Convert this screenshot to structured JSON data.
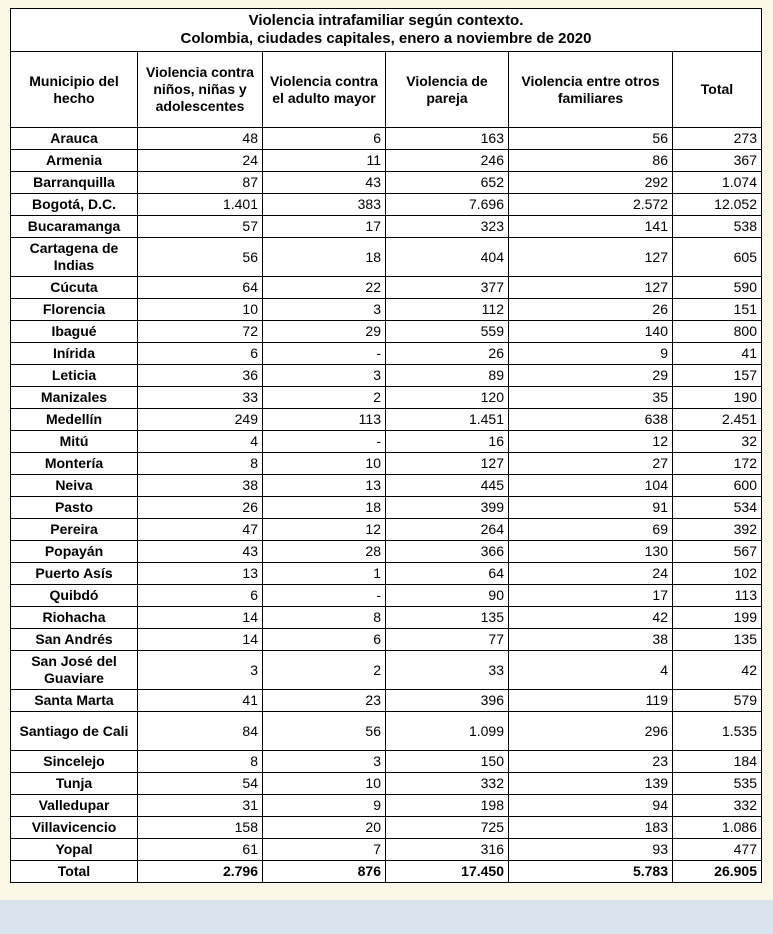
{
  "table": {
    "title": [
      "Violencia intrafamiliar según contexto.",
      "Colombia, ciudades capitales, enero a noviembre de 2020"
    ],
    "header": [
      "Municipio del hecho",
      "Violencia contra niños, niñas y adolescentes",
      "Violencia contra el adulto mayor",
      "Violencia de pareja",
      "Violencia entre otros familiares",
      "Total"
    ],
    "rows": [
      [
        "Arauca",
        "48",
        "6",
        "163",
        "56",
        "273"
      ],
      [
        "Armenia",
        "24",
        "11",
        "246",
        "86",
        "367"
      ],
      [
        "Barranquilla",
        "87",
        "43",
        "652",
        "292",
        "1.074"
      ],
      [
        "Bogotá, D.C.",
        "1.401",
        "383",
        "7.696",
        "2.572",
        "12.052"
      ],
      [
        "Bucaramanga",
        "57",
        "17",
        "323",
        "141",
        "538"
      ],
      [
        "Cartagena de Indias",
        "56",
        "18",
        "404",
        "127",
        "605"
      ],
      [
        "Cúcuta",
        "64",
        "22",
        "377",
        "127",
        "590"
      ],
      [
        "Florencia",
        "10",
        "3",
        "112",
        "26",
        "151"
      ],
      [
        "Ibagué",
        "72",
        "29",
        "559",
        "140",
        "800"
      ],
      [
        "Inírida",
        "6",
        "-",
        "26",
        "9",
        "41"
      ],
      [
        "Leticia",
        "36",
        "3",
        "89",
        "29",
        "157"
      ],
      [
        "Manizales",
        "33",
        "2",
        "120",
        "35",
        "190"
      ],
      [
        "Medellín",
        "249",
        "113",
        "1.451",
        "638",
        "2.451"
      ],
      [
        "Mitú",
        "4",
        "-",
        "16",
        "12",
        "32"
      ],
      [
        "Montería",
        "8",
        "10",
        "127",
        "27",
        "172"
      ],
      [
        "Neiva",
        "38",
        "13",
        "445",
        "104",
        "600"
      ],
      [
        "Pasto",
        "26",
        "18",
        "399",
        "91",
        "534"
      ],
      [
        "Pereira",
        "47",
        "12",
        "264",
        "69",
        "392"
      ],
      [
        "Popayán",
        "43",
        "28",
        "366",
        "130",
        "567"
      ],
      [
        "Puerto Asís",
        "13",
        "1",
        "64",
        "24",
        "102"
      ],
      [
        "Quibdó",
        "6",
        "-",
        "90",
        "17",
        "113"
      ],
      [
        "Riohacha",
        "14",
        "8",
        "135",
        "42",
        "199"
      ],
      [
        "San Andrés",
        "14",
        "6",
        "77",
        "38",
        "135"
      ],
      [
        "San José del Guaviare",
        "3",
        "2",
        "33",
        "4",
        "42"
      ],
      [
        "Santa Marta",
        "41",
        "23",
        "396",
        "119",
        "579"
      ],
      [
        "Santiago de Cali",
        "84",
        "56",
        "1.099",
        "296",
        "1.535"
      ],
      [
        "Sincelejo",
        "8",
        "3",
        "150",
        "23",
        "184"
      ],
      [
        "Tunja",
        "54",
        "10",
        "332",
        "139",
        "535"
      ],
      [
        "Valledupar",
        "31",
        "9",
        "198",
        "94",
        "332"
      ],
      [
        "Villavicencio",
        "158",
        "20",
        "725",
        "183",
        "1.086"
      ],
      [
        "Yopal",
        "61",
        "7",
        "316",
        "93",
        "477"
      ]
    ],
    "total": [
      "Total",
      "2.796",
      "876",
      "17.450",
      "5.783",
      "26.905"
    ]
  }
}
